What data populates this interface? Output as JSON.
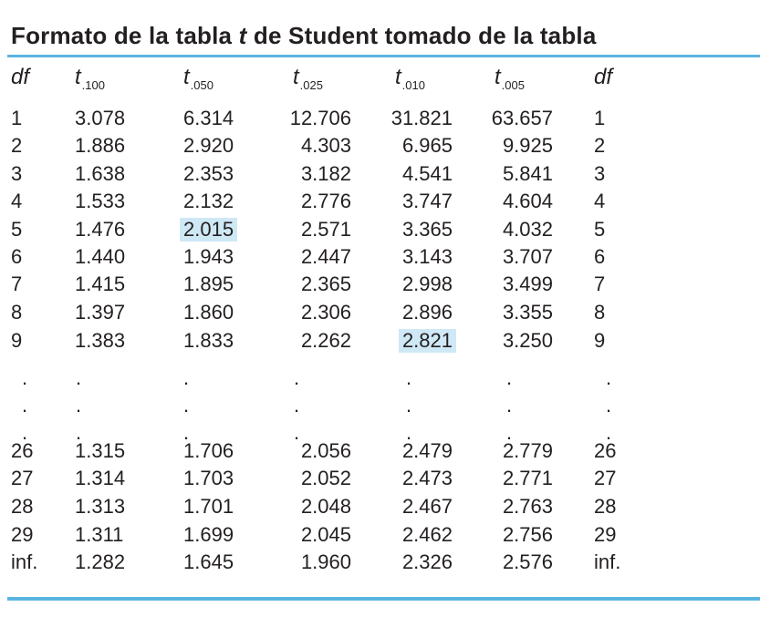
{
  "title_before": "Formato de la tabla ",
  "title_t": "t",
  "title_after": " de Student tomado de la tabla",
  "headers": {
    "df_left": "df",
    "t100_base": "t",
    "t100_sub": ".100",
    "t050_base": "t",
    "t050_sub": ".050",
    "t025_base": "t",
    "t025_sub": ".025",
    "t010_base": "t",
    "t010_sub": ".010",
    "t005_base": "t",
    "t005_sub": ".005",
    "df_right": "df"
  },
  "rows": [
    [
      "1",
      "3.078",
      "6.314",
      "12.706",
      "31.821",
      "63.657",
      "1"
    ],
    [
      "2",
      "1.886",
      "2.920",
      "4.303",
      "6.965",
      "9.925",
      "2"
    ],
    [
      "3",
      "1.638",
      "2.353",
      "3.182",
      "4.541",
      "5.841",
      "3"
    ],
    [
      "4",
      "1.533",
      "2.132",
      "2.776",
      "3.747",
      "4.604",
      "4"
    ],
    [
      "5",
      "1.476",
      "2.015",
      "2.571",
      "3.365",
      "4.032",
      "5"
    ],
    [
      "6",
      "1.440",
      "1.943",
      "2.447",
      "3.143",
      "3.707",
      "6"
    ],
    [
      "7",
      "1.415",
      "1.895",
      "2.365",
      "2.998",
      "3.499",
      "7"
    ],
    [
      "8",
      "1.397",
      "1.860",
      "2.306",
      "2.896",
      "3.355",
      "8"
    ],
    [
      "9",
      "1.383",
      "1.833",
      "2.262",
      "2.821",
      "3.250",
      "9"
    ],
    [
      "26",
      "1.315",
      "1.706",
      "2.056",
      "2.479",
      "2.779",
      "26"
    ],
    [
      "27",
      "1.314",
      "1.703",
      "2.052",
      "2.473",
      "2.771",
      "27"
    ],
    [
      "28",
      "1.313",
      "1.701",
      "2.048",
      "2.467",
      "2.763",
      "28"
    ],
    [
      "29",
      "1.311",
      "1.699",
      "2.045",
      "2.462",
      "2.756",
      "29"
    ],
    [
      "inf.",
      "1.282",
      "1.645",
      "1.960",
      "2.326",
      "2.576",
      "inf."
    ]
  ],
  "highlighted": [
    [
      4,
      2
    ],
    [
      8,
      4
    ]
  ],
  "ellipsis": "."
}
